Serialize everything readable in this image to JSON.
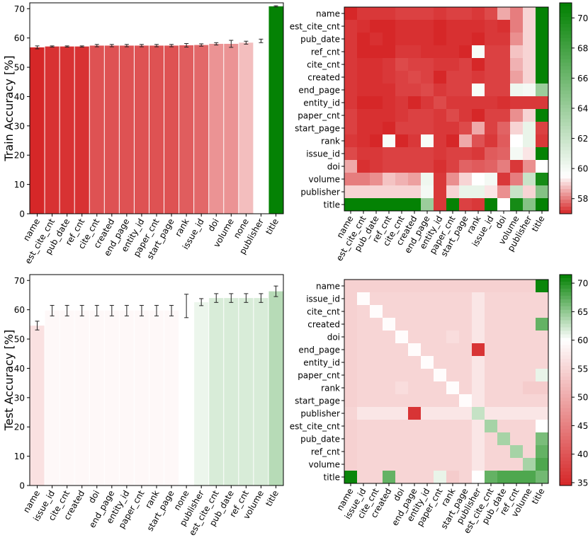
{
  "chart_data": [
    {
      "type": "bar",
      "panel": "top-left",
      "ylabel": "Train Accuracy [%]",
      "ylim": [
        0,
        72
      ],
      "yticks": [
        0,
        10,
        20,
        30,
        40,
        50,
        60,
        70
      ],
      "categories": [
        "name",
        "est_cite_cnt",
        "pub_date",
        "ref_cnt",
        "cite_cnt",
        "created",
        "end_page",
        "entity_id",
        "paper_cnt",
        "start_page",
        "rank",
        "issue_id",
        "doi",
        "volume",
        "none",
        "publisher",
        "title"
      ],
      "values": [
        56.8,
        57.1,
        57.1,
        57.1,
        57.4,
        57.4,
        57.4,
        57.4,
        57.4,
        57.4,
        57.5,
        57.6,
        58.0,
        58.0,
        58.4,
        59.0,
        70.8
      ],
      "errors": [
        0.5,
        0.2,
        0.2,
        0.2,
        0.4,
        0.4,
        0.4,
        0.4,
        0.4,
        0.4,
        0.6,
        0.4,
        0.4,
        1.2,
        0.5,
        0.6,
        0.2
      ],
      "colorscale": {
        "min": 57,
        "mid": 59,
        "max": 71
      }
    },
    {
      "type": "heatmap",
      "panel": "top-right",
      "rows": [
        "name",
        "est_cite_cnt",
        "pub_date",
        "ref_cnt",
        "cite_cnt",
        "created",
        "end_page",
        "entity_id",
        "paper_cnt",
        "start_page",
        "rank",
        "issue_id",
        "doi",
        "volume",
        "publisher",
        "title"
      ],
      "columns": [
        "name",
        "est_cite_cnt",
        "pub_date",
        "ref_cnt",
        "cite_cnt",
        "created",
        "end_page",
        "entity_id",
        "paper_cnt",
        "start_page",
        "rank",
        "issue_id",
        "doi",
        "volume",
        "publisher",
        "title"
      ],
      "values": [
        [
          56.8,
          57.2,
          57.2,
          57.2,
          57.3,
          57.3,
          57.3,
          57.2,
          57.3,
          57.3,
          57.2,
          57.4,
          58.5,
          58.0,
          59.0,
          70.8
        ],
        [
          57.2,
          57.1,
          56.9,
          57.0,
          57.1,
          57.1,
          57.1,
          57.0,
          57.1,
          57.1,
          57.1,
          57.2,
          57.1,
          58.0,
          59.0,
          70.8
        ],
        [
          57.2,
          56.9,
          57.1,
          57.0,
          57.1,
          57.1,
          57.1,
          56.9,
          57.1,
          57.1,
          57.0,
          57.2,
          57.2,
          58.2,
          59.0,
          70.8
        ],
        [
          57.2,
          57.0,
          57.0,
          56.9,
          57.2,
          57.2,
          57.1,
          57.1,
          57.1,
          56.8,
          59.8,
          57.3,
          57.3,
          58.8,
          59.0,
          70.8
        ],
        [
          57.2,
          57.1,
          57.1,
          57.2,
          57.4,
          57.3,
          57.3,
          57.2,
          57.2,
          57.3,
          56.9,
          57.3,
          57.3,
          58.6,
          59.0,
          70.8
        ],
        [
          57.2,
          57.1,
          57.1,
          57.2,
          57.3,
          57.4,
          57.3,
          56.9,
          57.3,
          57.3,
          57.2,
          57.3,
          57.3,
          58.4,
          59.0,
          70.8
        ],
        [
          57.2,
          57.1,
          57.1,
          57.1,
          57.3,
          57.3,
          57.4,
          57.2,
          57.3,
          57.3,
          59.8,
          57.3,
          57.3,
          60.2,
          60.0,
          64.0
        ],
        [
          57.2,
          57.0,
          56.9,
          57.1,
          57.2,
          56.9,
          57.2,
          57.4,
          57.2,
          57.2,
          57.2,
          57.2,
          57.1,
          57.2,
          57.2,
          57.2
        ],
        [
          57.3,
          57.1,
          57.1,
          57.1,
          57.2,
          57.3,
          57.3,
          57.2,
          57.4,
          57.2,
          56.8,
          57.3,
          57.3,
          58.2,
          59.0,
          70.8
        ],
        [
          57.3,
          57.1,
          57.1,
          56.8,
          57.3,
          57.3,
          57.3,
          57.2,
          57.2,
          57.4,
          58.5,
          57.3,
          57.7,
          59.0,
          60.5,
          57.3
        ],
        [
          57.2,
          57.1,
          57.0,
          59.8,
          56.9,
          57.2,
          59.8,
          57.2,
          56.8,
          58.5,
          57.5,
          57.2,
          57.6,
          59.5,
          60.5,
          57.2
        ],
        [
          57.4,
          57.2,
          57.2,
          57.3,
          57.3,
          57.3,
          57.3,
          57.2,
          57.3,
          57.3,
          57.2,
          57.6,
          57.7,
          60.0,
          59.2,
          70.8
        ],
        [
          58.5,
          57.1,
          57.2,
          57.3,
          57.3,
          57.3,
          57.3,
          57.1,
          57.3,
          57.7,
          57.6,
          57.7,
          58.0,
          57.2,
          58.2,
          59.5
        ],
        [
          58.0,
          58.0,
          58.2,
          58.8,
          58.6,
          58.4,
          60.2,
          57.2,
          58.2,
          59.0,
          59.5,
          60.0,
          57.2,
          58.0,
          62.0,
          70.0
        ],
        [
          59.0,
          59.0,
          59.0,
          59.0,
          59.0,
          59.0,
          60.0,
          57.2,
          59.0,
          60.5,
          60.5,
          59.2,
          58.2,
          62.0,
          59.0,
          65.0
        ],
        [
          70.8,
          70.8,
          70.8,
          70.8,
          70.8,
          70.8,
          64.0,
          57.2,
          70.8,
          57.3,
          57.2,
          70.8,
          59.5,
          70.0,
          65.0,
          70.8
        ]
      ],
      "colorbar": {
        "min": 57,
        "max": 71,
        "ticks": [
          58,
          60,
          62,
          64,
          66,
          68,
          70
        ]
      }
    },
    {
      "type": "bar",
      "panel": "bottom-left",
      "ylabel": "Test Accuracy [%]",
      "ylim": [
        0,
        72
      ],
      "yticks": [
        0,
        10,
        20,
        30,
        40,
        50,
        60,
        70
      ],
      "categories": [
        "name",
        "issue_id",
        "cite_cnt",
        "created",
        "doi",
        "end_page",
        "entity_id",
        "paper_cnt",
        "rank",
        "start_page",
        "none",
        "publisher",
        "est_cite_cnt",
        "pub_date",
        "ref_cnt",
        "volume",
        "title"
      ],
      "values": [
        54.6,
        59.7,
        59.7,
        59.7,
        59.7,
        59.7,
        59.7,
        59.7,
        59.7,
        59.7,
        61.3,
        62.6,
        64.0,
        64.0,
        64.0,
        64.0,
        66.3
      ],
      "errors": [
        1.5,
        1.8,
        1.8,
        1.8,
        1.8,
        1.8,
        1.8,
        1.8,
        1.8,
        1.8,
        4.0,
        1.2,
        1.5,
        1.5,
        1.5,
        1.5,
        1.8
      ],
      "colorscale": {
        "min": 35,
        "mid": 61.3,
        "max": 71
      }
    },
    {
      "type": "heatmap",
      "panel": "bottom-right",
      "rows": [
        "name",
        "issue_id",
        "cite_cnt",
        "created",
        "doi",
        "end_page",
        "entity_id",
        "paper_cnt",
        "rank",
        "start_page",
        "publisher",
        "est_cite_cnt",
        "pub_date",
        "ref_cnt",
        "volume",
        "title"
      ],
      "columns": [
        "name",
        "issue_id",
        "cite_cnt",
        "created",
        "doi",
        "end_page",
        "entity_id",
        "paper_cnt",
        "rank",
        "start_page",
        "publisher",
        "est_cite_cnt",
        "pub_date",
        "ref_cnt",
        "volume",
        "title"
      ],
      "values": [
        [
          54.6,
          54.6,
          54.6,
          54.6,
          54.6,
          54.6,
          54.6,
          54.6,
          54.6,
          54.6,
          54.6,
          54.6,
          54.6,
          54.6,
          54.6,
          71.0
        ],
        [
          54.6,
          59.7,
          55.0,
          55.0,
          55.0,
          55.0,
          55.0,
          55.0,
          55.0,
          55.0,
          57.0,
          55.0,
          55.0,
          55.0,
          55.0,
          55.0
        ],
        [
          54.6,
          55.0,
          59.7,
          55.0,
          55.0,
          55.0,
          55.0,
          55.0,
          55.0,
          55.0,
          57.0,
          55.0,
          55.0,
          55.0,
          55.0,
          55.0
        ],
        [
          54.6,
          55.0,
          55.0,
          59.7,
          55.0,
          55.0,
          55.0,
          55.0,
          55.0,
          55.0,
          57.0,
          55.0,
          55.0,
          55.0,
          55.0,
          67.0
        ],
        [
          54.6,
          55.0,
          55.0,
          55.0,
          59.7,
          55.0,
          55.0,
          55.0,
          56.0,
          55.0,
          57.0,
          55.0,
          55.0,
          55.0,
          55.0,
          55.0
        ],
        [
          54.6,
          55.0,
          55.0,
          55.0,
          55.0,
          59.7,
          55.0,
          55.0,
          55.0,
          55.0,
          36.0,
          55.0,
          55.0,
          55.0,
          55.0,
          55.0
        ],
        [
          54.6,
          55.0,
          55.0,
          55.0,
          55.0,
          55.0,
          59.7,
          55.0,
          55.0,
          55.0,
          57.0,
          55.0,
          55.0,
          55.0,
          55.0,
          55.0
        ],
        [
          54.6,
          55.0,
          55.0,
          55.0,
          55.0,
          55.0,
          55.0,
          59.7,
          55.0,
          55.0,
          57.0,
          55.0,
          55.0,
          55.0,
          55.0,
          61.0
        ],
        [
          54.6,
          55.0,
          55.0,
          55.0,
          56.0,
          55.0,
          55.0,
          55.0,
          59.7,
          55.0,
          57.0,
          55.0,
          55.0,
          55.0,
          54.0,
          54.0
        ],
        [
          54.6,
          55.0,
          55.0,
          55.0,
          55.0,
          55.0,
          55.0,
          55.0,
          55.0,
          59.7,
          57.0,
          55.0,
          55.0,
          55.0,
          55.0,
          55.0
        ],
        [
          55.0,
          57.0,
          57.0,
          57.0,
          57.0,
          36.0,
          57.0,
          57.0,
          57.0,
          57.0,
          62.6,
          57.0,
          57.0,
          57.0,
          57.0,
          57.0
        ],
        [
          54.6,
          55.0,
          55.0,
          55.0,
          55.0,
          55.0,
          55.0,
          55.0,
          55.0,
          55.0,
          57.0,
          64.0,
          55.0,
          55.0,
          55.0,
          60.0
        ],
        [
          54.6,
          55.0,
          55.0,
          55.0,
          55.0,
          55.0,
          55.0,
          55.0,
          55.0,
          55.0,
          57.0,
          55.0,
          64.0,
          55.0,
          55.0,
          66.0
        ],
        [
          54.6,
          55.0,
          55.0,
          55.0,
          55.0,
          55.0,
          55.0,
          55.0,
          55.0,
          55.0,
          57.0,
          55.0,
          55.0,
          64.0,
          55.0,
          67.0
        ],
        [
          54.6,
          55.0,
          55.0,
          55.0,
          55.0,
          55.0,
          55.0,
          55.0,
          55.0,
          55.0,
          57.0,
          55.0,
          55.0,
          55.0,
          64.0,
          68.0
        ],
        [
          71.0,
          55.0,
          55.0,
          67.0,
          55.0,
          55.0,
          55.0,
          61.0,
          54.0,
          55.0,
          60.0,
          67.0,
          68.0,
          68.0,
          68.0,
          66.3
        ]
      ],
      "colorbar": {
        "min": 34.5,
        "max": 71.5,
        "ticks": [
          35,
          40,
          45,
          50,
          55,
          60,
          65,
          70
        ]
      }
    }
  ]
}
